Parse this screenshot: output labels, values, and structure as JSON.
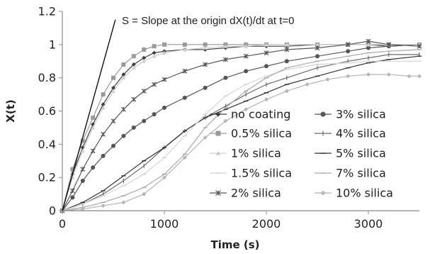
{
  "chart_data": {
    "type": "line",
    "title": "",
    "xlabel": "Time (s)",
    "ylabel": "X(t)",
    "xlim": [
      0,
      3500
    ],
    "ylim": [
      0,
      1.2
    ],
    "x_ticks": [
      0,
      1000,
      2000,
      3000
    ],
    "y_ticks": [
      0,
      0.2,
      0.4,
      0.6,
      0.8,
      1,
      1.2
    ],
    "x_tick_labels": [
      "0",
      "1000",
      "2000",
      "3000"
    ],
    "y_tick_labels": [
      "0",
      "0.2",
      "0.4",
      "0.6",
      "0.8",
      "1",
      "1.2"
    ],
    "grid": false,
    "legend_position": "lower-right",
    "annotation": {
      "text": "S = Slope at the origin dX(t)/dt at t=0",
      "line": {
        "x": [
          0,
          520
        ],
        "y": [
          0,
          1.15
        ]
      }
    },
    "series": [
      {
        "name": "no coating",
        "color": "#404040",
        "marker": "diamond",
        "x": [
          0,
          100,
          200,
          300,
          400,
          500,
          600,
          700,
          800,
          900,
          1000,
          1200,
          1400,
          1600,
          1800,
          2000,
          2200,
          2500,
          2800,
          3000,
          3200,
          3500
        ],
        "y": [
          0,
          0.22,
          0.38,
          0.52,
          0.64,
          0.74,
          0.82,
          0.88,
          0.92,
          0.95,
          0.96,
          0.97,
          0.97,
          0.98,
          0.99,
          0.99,
          0.99,
          1.0,
          1.0,
          1.0,
          0.99,
          1.0
        ]
      },
      {
        "name": "3% silica",
        "color": "#555555",
        "marker": "circle",
        "x": [
          0,
          100,
          200,
          300,
          400,
          500,
          600,
          700,
          800,
          900,
          1000,
          1200,
          1400,
          1600,
          1800,
          2000,
          2200,
          2500,
          2800,
          3000,
          3200,
          3500
        ],
        "y": [
          0,
          0.08,
          0.18,
          0.26,
          0.33,
          0.39,
          0.45,
          0.5,
          0.54,
          0.58,
          0.62,
          0.68,
          0.74,
          0.8,
          0.84,
          0.87,
          0.9,
          0.93,
          0.96,
          0.98,
          0.99,
          1.0
        ]
      },
      {
        "name": "0.5% silica",
        "color": "#9a9a9a",
        "marker": "square",
        "x": [
          0,
          100,
          200,
          300,
          400,
          500,
          600,
          700,
          800,
          900,
          1000,
          1200,
          1400,
          1600,
          1800,
          2000,
          2200,
          2500,
          2800,
          3000,
          3200,
          3500
        ],
        "y": [
          0,
          0.25,
          0.42,
          0.56,
          0.7,
          0.8,
          0.88,
          0.93,
          0.97,
          0.99,
          1.0,
          1.0,
          1.0,
          1.0,
          1.0,
          1.0,
          1.0,
          1.0,
          1.0,
          1.0,
          1.0,
          1.0
        ]
      },
      {
        "name": "4% silica",
        "color": "#6a6a6a",
        "marker": "bar",
        "x": [
          0,
          200,
          400,
          600,
          800,
          1000,
          1200,
          1400,
          1600,
          1800,
          2000,
          2200,
          2500,
          2800,
          3000,
          3200,
          3500
        ],
        "y": [
          0,
          0.04,
          0.1,
          0.18,
          0.27,
          0.38,
          0.48,
          0.56,
          0.63,
          0.7,
          0.76,
          0.8,
          0.86,
          0.9,
          0.92,
          0.94,
          0.94
        ]
      },
      {
        "name": "1% silica",
        "color": "#cfcfcf",
        "marker": "triangle",
        "x": [
          0,
          100,
          200,
          300,
          400,
          500,
          600,
          700,
          800,
          900,
          1000,
          1200,
          1400,
          1600,
          1800,
          2000,
          2200,
          2500,
          2800,
          3000,
          3200,
          3500
        ],
        "y": [
          0,
          0.2,
          0.36,
          0.5,
          0.62,
          0.72,
          0.8,
          0.86,
          0.9,
          0.93,
          0.95,
          0.97,
          0.98,
          0.99,
          0.99,
          1.0,
          1.0,
          1.0,
          1.0,
          1.0,
          1.0,
          1.0
        ]
      },
      {
        "name": "5% silica",
        "color": "#333333",
        "marker": "dash",
        "x": [
          0,
          200,
          400,
          600,
          800,
          1000,
          1200,
          1400,
          1600,
          1800,
          2000,
          2200,
          2500,
          2800,
          3000,
          3200,
          3500
        ],
        "y": [
          0,
          0.05,
          0.12,
          0.21,
          0.3,
          0.38,
          0.48,
          0.56,
          0.61,
          0.66,
          0.71,
          0.76,
          0.81,
          0.86,
          0.89,
          0.91,
          0.93
        ]
      },
      {
        "name": "1.5% silica",
        "color": "#d4d4d4",
        "marker": "dash",
        "x": [
          0,
          200,
          400,
          600,
          800,
          1000,
          1200,
          1400,
          1600,
          1800,
          2000,
          2200,
          2500,
          2800,
          3000,
          3200,
          3500
        ],
        "y": [
          0,
          0.04,
          0.09,
          0.15,
          0.22,
          0.32,
          0.45,
          0.58,
          0.69,
          0.76,
          0.81,
          0.85,
          0.88,
          0.89,
          0.9,
          0.9,
          0.9
        ]
      },
      {
        "name": "7% silica",
        "color": "#a8a8a8",
        "marker": "dash",
        "x": [
          0,
          200,
          400,
          600,
          800,
          1000,
          1200,
          1400,
          1600,
          1800,
          2000,
          2200,
          2500,
          2800,
          3000,
          3200,
          3500
        ],
        "y": [
          0,
          0.02,
          0.05,
          0.09,
          0.14,
          0.22,
          0.34,
          0.5,
          0.62,
          0.72,
          0.8,
          0.86,
          0.9,
          0.93,
          0.95,
          0.96,
          0.97
        ]
      },
      {
        "name": "2% silica",
        "color": "#555555",
        "marker": "star",
        "x": [
          0,
          100,
          200,
          300,
          400,
          500,
          600,
          700,
          800,
          900,
          1000,
          1200,
          1400,
          1600,
          1800,
          2000,
          2200,
          2500,
          2800,
          3000,
          3200,
          3500
        ],
        "y": [
          0,
          0.12,
          0.25,
          0.36,
          0.46,
          0.54,
          0.61,
          0.67,
          0.72,
          0.76,
          0.79,
          0.84,
          0.88,
          0.91,
          0.93,
          0.95,
          0.97,
          0.98,
          1.0,
          1.02,
          1.0,
          0.99
        ]
      },
      {
        "name": "10% silica",
        "color": "#b5b5b5",
        "marker": "diamond",
        "x": [
          0,
          200,
          400,
          600,
          800,
          1000,
          1200,
          1400,
          1600,
          1800,
          2000,
          2200,
          2400,
          2600,
          2800,
          3000,
          3200,
          3400,
          3500
        ],
        "y": [
          0,
          0.01,
          0.03,
          0.05,
          0.1,
          0.2,
          0.32,
          0.44,
          0.54,
          0.61,
          0.67,
          0.72,
          0.76,
          0.79,
          0.81,
          0.82,
          0.82,
          0.81,
          0.81
        ]
      }
    ]
  }
}
